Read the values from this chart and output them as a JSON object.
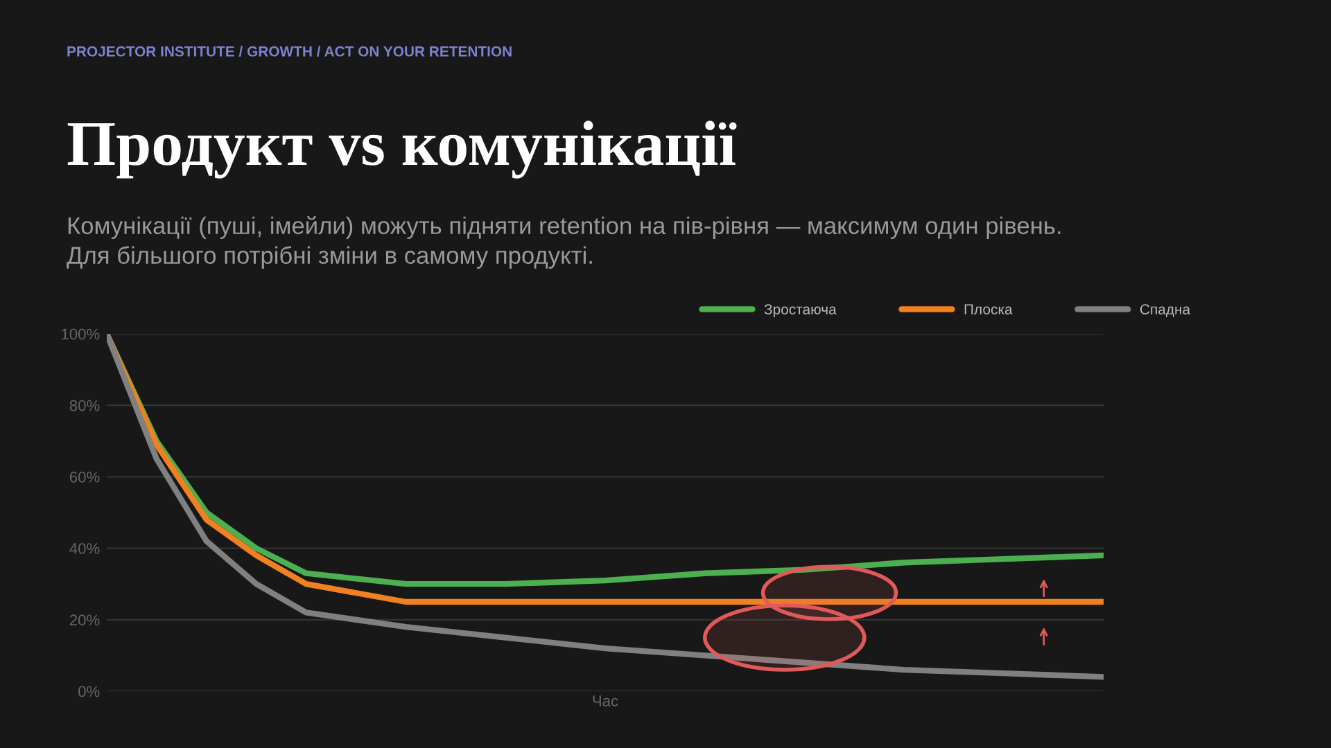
{
  "chart_data": {
    "type": "line",
    "title": "Продукт vs комунікації",
    "subtitle": "Комунікації (пуші, імейли) можуть підняти retention на пів-рівня — максимум один рівень.\nДля більшого потрібні зміни в самому продукті.",
    "annotations": [
      "PROJECTOR INSTITUTE / GROWTH / ACT ON YOUR RETENTION"
    ],
    "xlabel": "Час",
    "categories": [
      null,
      null,
      null,
      null,
      null,
      null,
      null,
      null,
      null,
      null,
      null,
      null,
      null,
      null,
      null,
      null,
      null,
      null,
      null,
      null,
      null
    ],
    "series": [
      {
        "name": "Зростаюча",
        "color": "#4caf50",
        "values": [
          100,
          70,
          50,
          40,
          33,
          null,
          30,
          null,
          30,
          null,
          31,
          null,
          33,
          null,
          34,
          null,
          36,
          null,
          37,
          null,
          38
        ]
      },
      {
        "name": "Плоска",
        "color": "#f08020",
        "values": [
          100,
          69,
          48,
          38,
          30,
          null,
          25,
          null,
          25,
          null,
          25,
          null,
          25,
          null,
          25,
          null,
          25,
          null,
          25,
          null,
          25
        ]
      },
      {
        "name": "Спадна",
        "color": "#808080",
        "values": [
          100,
          65,
          42,
          30,
          22,
          null,
          18,
          null,
          15,
          null,
          12,
          null,
          10,
          null,
          8,
          null,
          6,
          null,
          5,
          null,
          4
        ]
      }
    ],
    "ylim": [
      0,
      100
    ],
    "yticks": [
      {
        "value": 0,
        "label": "0%"
      },
      {
        "value": 20,
        "label": "20%"
      },
      {
        "value": 40,
        "label": "40%"
      },
      {
        "value": 60,
        "label": "60%"
      },
      {
        "value": 80,
        "label": "80%"
      },
      {
        "value": 100,
        "label": "100%"
      }
    ],
    "tick_labels": "y",
    "grid": "y",
    "legend": "top right",
    "marker": "none",
    "line_style": "solid"
  }
}
